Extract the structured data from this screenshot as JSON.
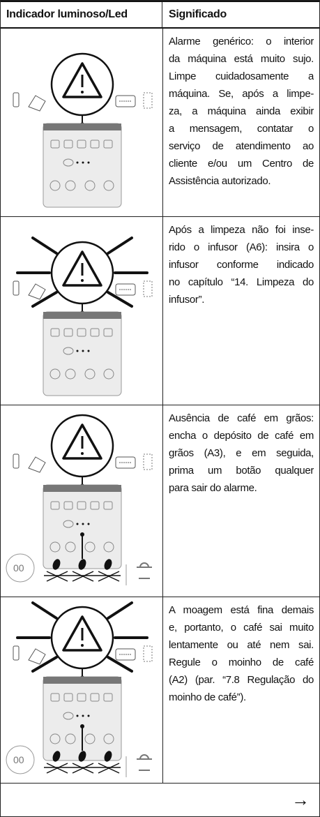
{
  "header": {
    "col1": "Indicador luminoso/Led",
    "col2": "Significado"
  },
  "rows": [
    {
      "lines": [
        "Alarme genérico: o interior",
        "da máquina está muito sujo.",
        "Limpe cuidadosamente a",
        "máquina. Se, após a limpe-",
        "za, a máquina ainda exibir",
        "a mensagem, contatar o",
        "serviço de atendimento ao",
        "cliente e/ou um Centro de",
        "Assistência autorizado."
      ]
    },
    {
      "lines": [
        "Após a limpeza não foi inse-",
        "rido o infusor (A6): insira o",
        "infusor conforme indicado",
        "no capítulo “14. Limpeza do",
        "infusor”."
      ]
    },
    {
      "lines": [
        "Ausência de café em grãos:",
        "encha o depósito de café em",
        "grãos (A3), e em seguida,",
        "prima um botão qualquer",
        "para sair do alarme."
      ]
    },
    {
      "lines": [
        "A moagem está fina demais",
        "e, portanto, o café sai muito",
        "lentamente ou até nem sai.",
        "Regule o moinho de café",
        "(A2) (par. “7.8 Regulação do",
        "moinho de café”)."
      ]
    }
  ],
  "footer": {
    "arrow": "→"
  }
}
